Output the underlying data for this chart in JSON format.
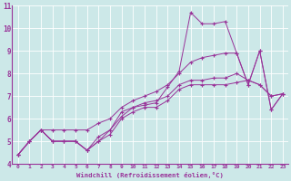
{
  "xlabel": "Windchill (Refroidissement éolien,°C)",
  "ylabel": "",
  "xlim": [
    -0.5,
    23.5
  ],
  "ylim": [
    4,
    11
  ],
  "xticks": [
    0,
    1,
    2,
    3,
    4,
    5,
    6,
    7,
    8,
    9,
    10,
    11,
    12,
    13,
    14,
    15,
    16,
    17,
    18,
    19,
    20,
    21,
    22,
    23
  ],
  "yticks": [
    4,
    5,
    6,
    7,
    8,
    9,
    10,
    11
  ],
  "bg_color": "#cce8e8",
  "grid_color": "#aacccc",
  "line_color": "#993399",
  "series": [
    [
      4.4,
      5.0,
      5.5,
      5.0,
      5.0,
      5.0,
      4.6,
      5.0,
      5.3,
      6.0,
      6.3,
      6.5,
      6.5,
      6.8,
      7.3,
      7.5,
      7.5,
      7.5,
      7.5,
      7.6,
      7.7,
      7.5,
      7.0,
      7.1
    ],
    [
      4.4,
      5.0,
      5.5,
      5.0,
      5.0,
      5.0,
      4.6,
      5.0,
      5.5,
      6.1,
      6.5,
      6.6,
      6.7,
      7.4,
      8.1,
      10.7,
      10.2,
      10.2,
      10.3,
      8.9,
      7.5,
      9.0,
      6.4,
      7.1
    ],
    [
      4.4,
      5.0,
      5.5,
      5.0,
      5.0,
      5.0,
      4.6,
      5.2,
      5.5,
      6.3,
      6.5,
      6.7,
      6.8,
      7.0,
      7.5,
      7.7,
      7.7,
      7.8,
      7.8,
      8.0,
      7.7,
      7.5,
      7.0,
      7.1
    ],
    [
      4.4,
      5.0,
      5.5,
      5.5,
      5.5,
      5.5,
      5.5,
      5.8,
      6.0,
      6.5,
      6.8,
      7.0,
      7.2,
      7.5,
      8.0,
      8.5,
      8.7,
      8.8,
      8.9,
      8.9,
      7.5,
      9.0,
      6.4,
      7.1
    ]
  ]
}
